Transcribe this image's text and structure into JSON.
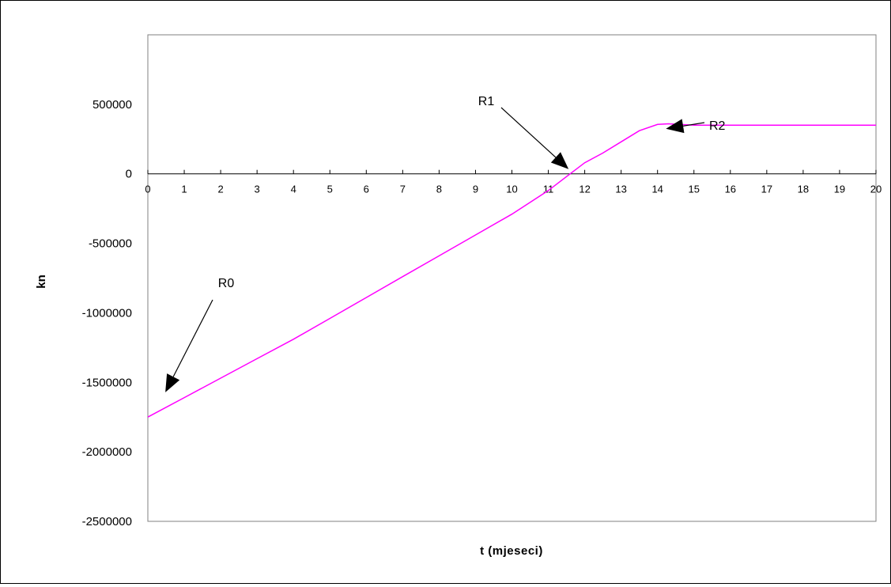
{
  "chart_data": {
    "type": "line",
    "xlabel": "t (mjeseci)",
    "ylabel": "kn",
    "xlim": [
      0,
      20
    ],
    "ylim": [
      -2500000,
      500000
    ],
    "xticks": [
      0,
      1,
      2,
      3,
      4,
      5,
      6,
      7,
      8,
      9,
      10,
      11,
      12,
      13,
      14,
      15,
      16,
      17,
      18,
      19,
      20
    ],
    "yticks": [
      500000,
      0,
      -500000,
      -1000000,
      -1500000,
      -2000000,
      -2500000
    ],
    "ytick_labels": [
      "500000",
      "0",
      "-500000",
      "-1000000",
      "-1500000",
      "-2000000",
      "-2500000"
    ],
    "grid": false,
    "line_color": "#ff00ff",
    "series": [
      {
        "x": [
          0,
          1,
          2,
          3,
          4,
          5,
          6,
          7,
          8,
          9,
          10,
          11,
          11.6,
          12,
          12.5,
          13,
          13.5,
          14,
          14.3,
          15,
          16,
          17,
          18,
          19,
          20
        ],
        "y": [
          -1750000,
          -1610000,
          -1470000,
          -1330000,
          -1190000,
          -1040000,
          -890000,
          -740000,
          -590000,
          -440000,
          -290000,
          -120000,
          0,
          80000,
          150000,
          230000,
          310000,
          355000,
          360000,
          350000,
          350000,
          350000,
          350000,
          350000,
          350000
        ]
      }
    ],
    "annotations": [
      {
        "label": "R0",
        "x": 0.35,
        "y": -1600000
      },
      {
        "label": "R1",
        "x": 11.6,
        "y": 0
      },
      {
        "label": "R2",
        "x": 14.1,
        "y": 290000
      }
    ]
  }
}
